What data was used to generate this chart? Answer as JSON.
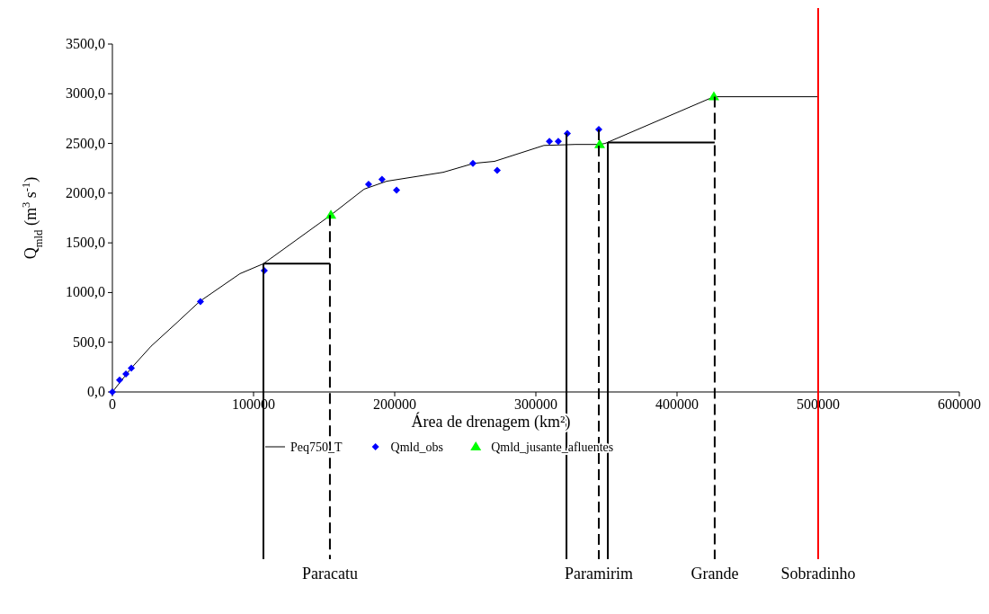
{
  "chart_data": {
    "type": "line",
    "xlabel": "Área de drenagem (km²)",
    "ylabel": "Q$_{mld}$ (m$^{3}$ s$^{-1}$)",
    "xlim": [
      0,
      600000
    ],
    "xticks": [
      0,
      100000,
      200000,
      300000,
      400000,
      500000,
      600000
    ],
    "ylim": [
      0,
      3500
    ],
    "yticks": [
      {
        "value": 0,
        "label": "0,0"
      },
      {
        "value": 500,
        "label": "500,0"
      },
      {
        "value": 1000,
        "label": "1000,0"
      },
      {
        "value": 1500,
        "label": "1500,0"
      },
      {
        "value": 2000,
        "label": "2000,0"
      },
      {
        "value": 2500,
        "label": "2500,0"
      },
      {
        "value": 3000,
        "label": "3000,0"
      },
      {
        "value": 3500,
        "label": "3500,0"
      }
    ],
    "legend": "bottom",
    "grid": false,
    "series": [
      {
        "name": "Peq750_T",
        "type": "line",
        "color": "#000000",
        "marker": "none",
        "x": [
          0,
          13400,
          27400,
          45900,
          61800,
          90400,
          107000,
          154800,
          178300,
          194300,
          234400,
          256100,
          270700,
          305700,
          328000,
          345200,
          349000,
          426100,
          500000
        ],
        "values": [
          0,
          240,
          460,
          700,
          910,
          1190,
          1290,
          1780,
          2040,
          2120,
          2210,
          2300,
          2320,
          2480,
          2490,
          2490,
          2500,
          2970,
          2970
        ]
      },
      {
        "name": "Qmld_obs",
        "type": "scatter",
        "color": "#0000ff",
        "marker": "diamond",
        "x": [
          0,
          5100,
          9600,
          13400,
          62400,
          107600,
          181500,
          191000,
          201300,
          255400,
          272600,
          309600,
          315900,
          322300,
          344600
        ],
        "values": [
          0,
          120,
          180,
          240,
          910,
          1220,
          2090,
          2140,
          2030,
          2300,
          2230,
          2520,
          2520,
          2600,
          2640
        ]
      },
      {
        "name": "Qmld_jusante_afluentes",
        "type": "scatter",
        "color": "#00ff00",
        "marker": "triangle",
        "x": [
          154800,
          345200,
          426100
        ],
        "values": [
          1780,
          2490,
          2970
        ]
      },
      {
        "type": "line",
        "color": "#000000",
        "marker": "none",
        "x": [
          107000,
          154100
        ],
        "values": [
          1290,
          1290
        ]
      },
      {
        "type": "line",
        "color": "#000000",
        "marker": "none",
        "x": [
          351000,
          426700
        ],
        "values": [
          2510,
          2510
        ]
      }
    ],
    "ref_lines": [
      {
        "axis": "x",
        "value": 107000,
        "color": "#000000",
        "line_style": "solid"
      },
      {
        "axis": "x",
        "value": 154100,
        "label": "Paracatu",
        "color": "#000000",
        "line_style": "dashed"
      },
      {
        "axis": "x",
        "value": 321700,
        "color": "#000000",
        "line_style": "solid"
      },
      {
        "axis": "x",
        "value": 344600,
        "label": "Paramirim",
        "color": "#000000",
        "line_style": "dashed"
      },
      {
        "axis": "x",
        "value": 351000,
        "color": "#000000",
        "line_style": "solid"
      },
      {
        "axis": "x",
        "value": 426700,
        "label": "Grande",
        "color": "#000000",
        "line_style": "dashed"
      },
      {
        "axis": "x",
        "value": 500000,
        "label": "Sobradinho",
        "color": "#ff0000",
        "line_style": "solid"
      }
    ]
  }
}
